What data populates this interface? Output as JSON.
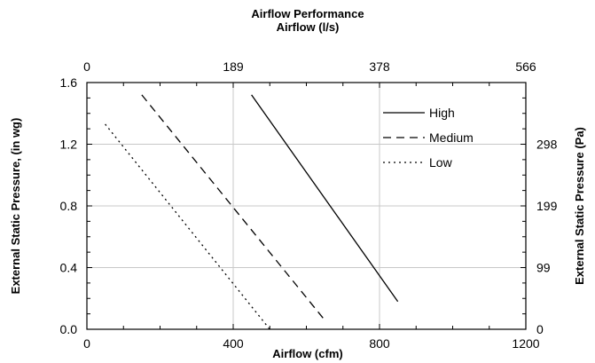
{
  "chart_data": {
    "type": "line",
    "title": "Airflow Performance",
    "top_axis_label": "Airflow (l/s)",
    "xlabel": "Airflow (cfm)",
    "ylabel": "External Static Pressure, (in wg)",
    "right_axis_label": "External Static Pressure (Pa)",
    "xlim": [
      0,
      1200
    ],
    "ylim": [
      0,
      1.6
    ],
    "x_ticks": [
      0,
      400,
      800,
      1200
    ],
    "x_tick_labels": [
      "0",
      "400",
      "800",
      "1200"
    ],
    "y_ticks": [
      0.0,
      0.4,
      0.8,
      1.2,
      1.6
    ],
    "y_tick_labels": [
      "0.0",
      "0.4",
      "0.8",
      "1.2",
      "1.6"
    ],
    "top_ticks": [
      0,
      400,
      800,
      1200
    ],
    "top_tick_labels": [
      "0",
      "189",
      "378",
      "566"
    ],
    "right_ticks": [
      0,
      0.4,
      0.8,
      1.2
    ],
    "right_tick_labels": [
      "0",
      "99",
      "199",
      "298"
    ],
    "grid": true,
    "legend_position": "top-right",
    "series": [
      {
        "name": "High",
        "dash": "solid",
        "x": [
          450,
          850
        ],
        "y": [
          1.52,
          0.18
        ]
      },
      {
        "name": "Medium",
        "dash": "dashed",
        "x": [
          150,
          650
        ],
        "y": [
          1.52,
          0.06
        ]
      },
      {
        "name": "Low",
        "dash": "dotted",
        "x": [
          50,
          500
        ],
        "y": [
          1.33,
          0.0
        ]
      }
    ]
  }
}
